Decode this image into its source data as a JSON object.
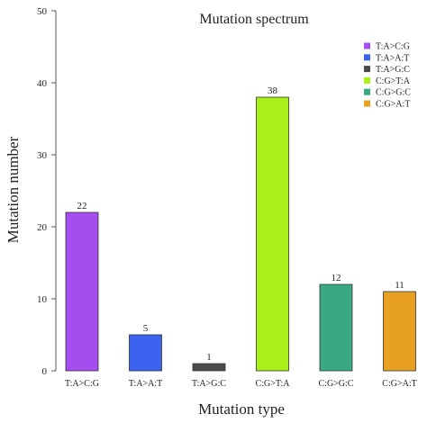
{
  "chart_data": {
    "type": "bar",
    "title": "Mutation spectrum",
    "xlabel": "Mutation type",
    "ylabel": "Mutation number",
    "ylim": [
      0,
      50
    ],
    "yticks": [
      0,
      10,
      20,
      30,
      40,
      50
    ],
    "categories": [
      "T:A>C:G",
      "T:A>A:T",
      "T:A>G:C",
      "C:G>T:A",
      "C:G>G:C",
      "C:G>A:T"
    ],
    "values": [
      22,
      5,
      1,
      38,
      12,
      11
    ],
    "colors": [
      "#a64df0",
      "#3b63f0",
      "#4a4a4a",
      "#a8f018",
      "#3aa882",
      "#e8a022"
    ],
    "legend_position": "top-right",
    "grid": false
  }
}
